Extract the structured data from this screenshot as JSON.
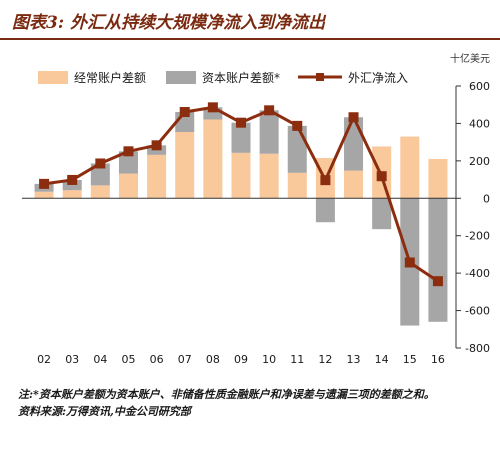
{
  "header": {
    "figure_label": "图表3:",
    "title": "外汇从持续大规模净流入到净流出"
  },
  "chart_data": {
    "type": "bar",
    "categories": [
      "02",
      "03",
      "04",
      "05",
      "06",
      "07",
      "08",
      "09",
      "10",
      "11",
      "12",
      "13",
      "14",
      "15",
      "16"
    ],
    "series": [
      {
        "name": "经常账户差额",
        "kind": "stacked-bar",
        "color": "#f9c89b",
        "values": [
          35,
          43,
          69,
          132,
          232,
          354,
          421,
          243,
          238,
          136,
          215,
          148,
          277,
          330,
          210
        ]
      },
      {
        "name": "资本账户差额*",
        "kind": "stacked-bar",
        "color": "#a6a6a6",
        "values": [
          42,
          55,
          117,
          119,
          51,
          107,
          65,
          161,
          232,
          251,
          -128,
          285,
          -165,
          -680,
          -660
        ]
      },
      {
        "name": "外汇净流入",
        "kind": "line",
        "color": "#8b2d0e",
        "values": [
          77,
          98,
          186,
          251,
          283,
          461,
          486,
          404,
          470,
          387,
          97,
          433,
          118,
          -343,
          -443
        ]
      }
    ],
    "y_axis": {
      "unit": "十亿美元",
      "ylim": [
        -800,
        600
      ],
      "ticks": [
        600,
        400,
        200,
        0,
        -200,
        -400,
        -600,
        -800
      ],
      "position": "right"
    },
    "legend": {
      "position": "top"
    },
    "grid": false
  },
  "footer": {
    "note": "注:*资本账户差额为资本账户、非储备性质金融账户和净误差与遗漏三项的差额之和。",
    "source": "资料来源:万得资讯,中金公司研究部"
  }
}
